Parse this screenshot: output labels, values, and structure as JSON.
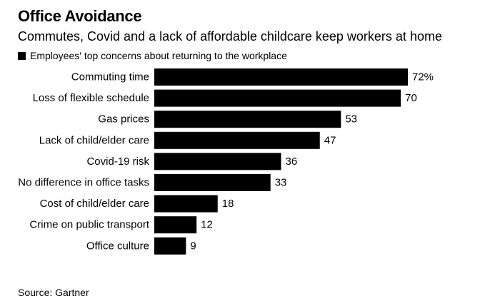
{
  "colors": {
    "bar": "#000000",
    "background": "#ffffff",
    "text": "#000000"
  },
  "chart_data": {
    "type": "bar",
    "orientation": "horizontal",
    "title": "Office Avoidance",
    "subtitle": "Commutes, Covid and a lack of affordable childcare keep workers at home",
    "legend": [
      "Employees' top concerns about returning to the workplace"
    ],
    "legend_placement": "top-left",
    "categories": [
      "Commuting time",
      "Loss of flexible schedule",
      "Gas prices",
      "Lack of child/elder care",
      "Covid-19 risk",
      "No difference in office tasks",
      "Cost of child/elder care",
      "Crime on public transport",
      "Office culture"
    ],
    "series": [
      {
        "name": "Employees' top concerns about returning to the workplace",
        "values": [
          72,
          70,
          53,
          47,
          36,
          33,
          18,
          12,
          9
        ],
        "value_labels": [
          "72%",
          "70",
          "53",
          "47",
          "36",
          "33",
          "18",
          "12",
          "9"
        ]
      }
    ],
    "xlim": [
      0,
      72
    ],
    "grid": false,
    "source": "Source: Gartner"
  }
}
